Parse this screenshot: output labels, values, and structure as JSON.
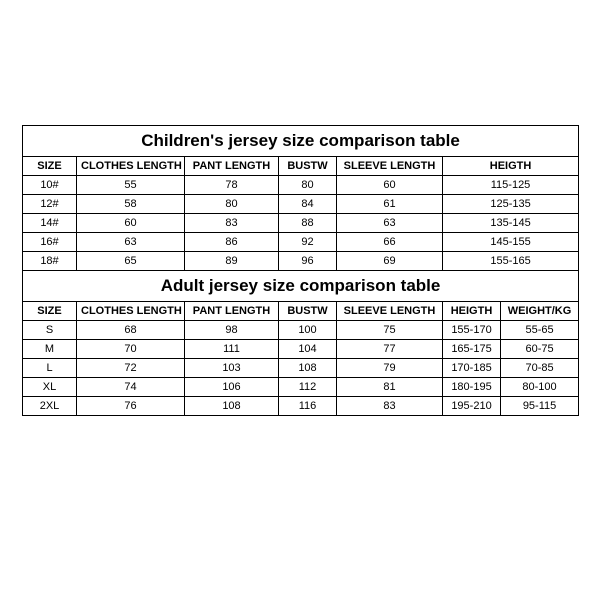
{
  "colors": {
    "border": "#000000",
    "bg": "#ffffff",
    "text": "#000000"
  },
  "children": {
    "title": "Children's jersey size comparison table",
    "columns": [
      "SIZE",
      "CLOTHES LENGTH",
      "PANT LENGTH",
      "BUSTW",
      "SLEEVE LENGTH",
      "HEIGTH"
    ],
    "rows": [
      [
        "10#",
        "55",
        "78",
        "80",
        "60",
        "115-125"
      ],
      [
        "12#",
        "58",
        "80",
        "84",
        "61",
        "125-135"
      ],
      [
        "14#",
        "60",
        "83",
        "88",
        "63",
        "135-145"
      ],
      [
        "16#",
        "63",
        "86",
        "92",
        "66",
        "145-155"
      ],
      [
        "18#",
        "65",
        "89",
        "96",
        "69",
        "155-165"
      ]
    ]
  },
  "adult": {
    "title": "Adult jersey size comparison table",
    "columns": [
      "SIZE",
      "CLOTHES LENGTH",
      "PANT LENGTH",
      "BUSTW",
      "SLEEVE LENGTH",
      "HEIGTH",
      "WEIGHT/KG"
    ],
    "rows": [
      [
        "S",
        "68",
        "98",
        "100",
        "75",
        "155-170",
        "55-65"
      ],
      [
        "M",
        "70",
        "111",
        "104",
        "77",
        "165-175",
        "60-75"
      ],
      [
        "L",
        "72",
        "103",
        "108",
        "79",
        "170-185",
        "70-85"
      ],
      [
        "XL",
        "74",
        "106",
        "112",
        "81",
        "180-195",
        "80-100"
      ],
      [
        "2XL",
        "76",
        "108",
        "116",
        "83",
        "195-210",
        "95-115"
      ]
    ]
  }
}
